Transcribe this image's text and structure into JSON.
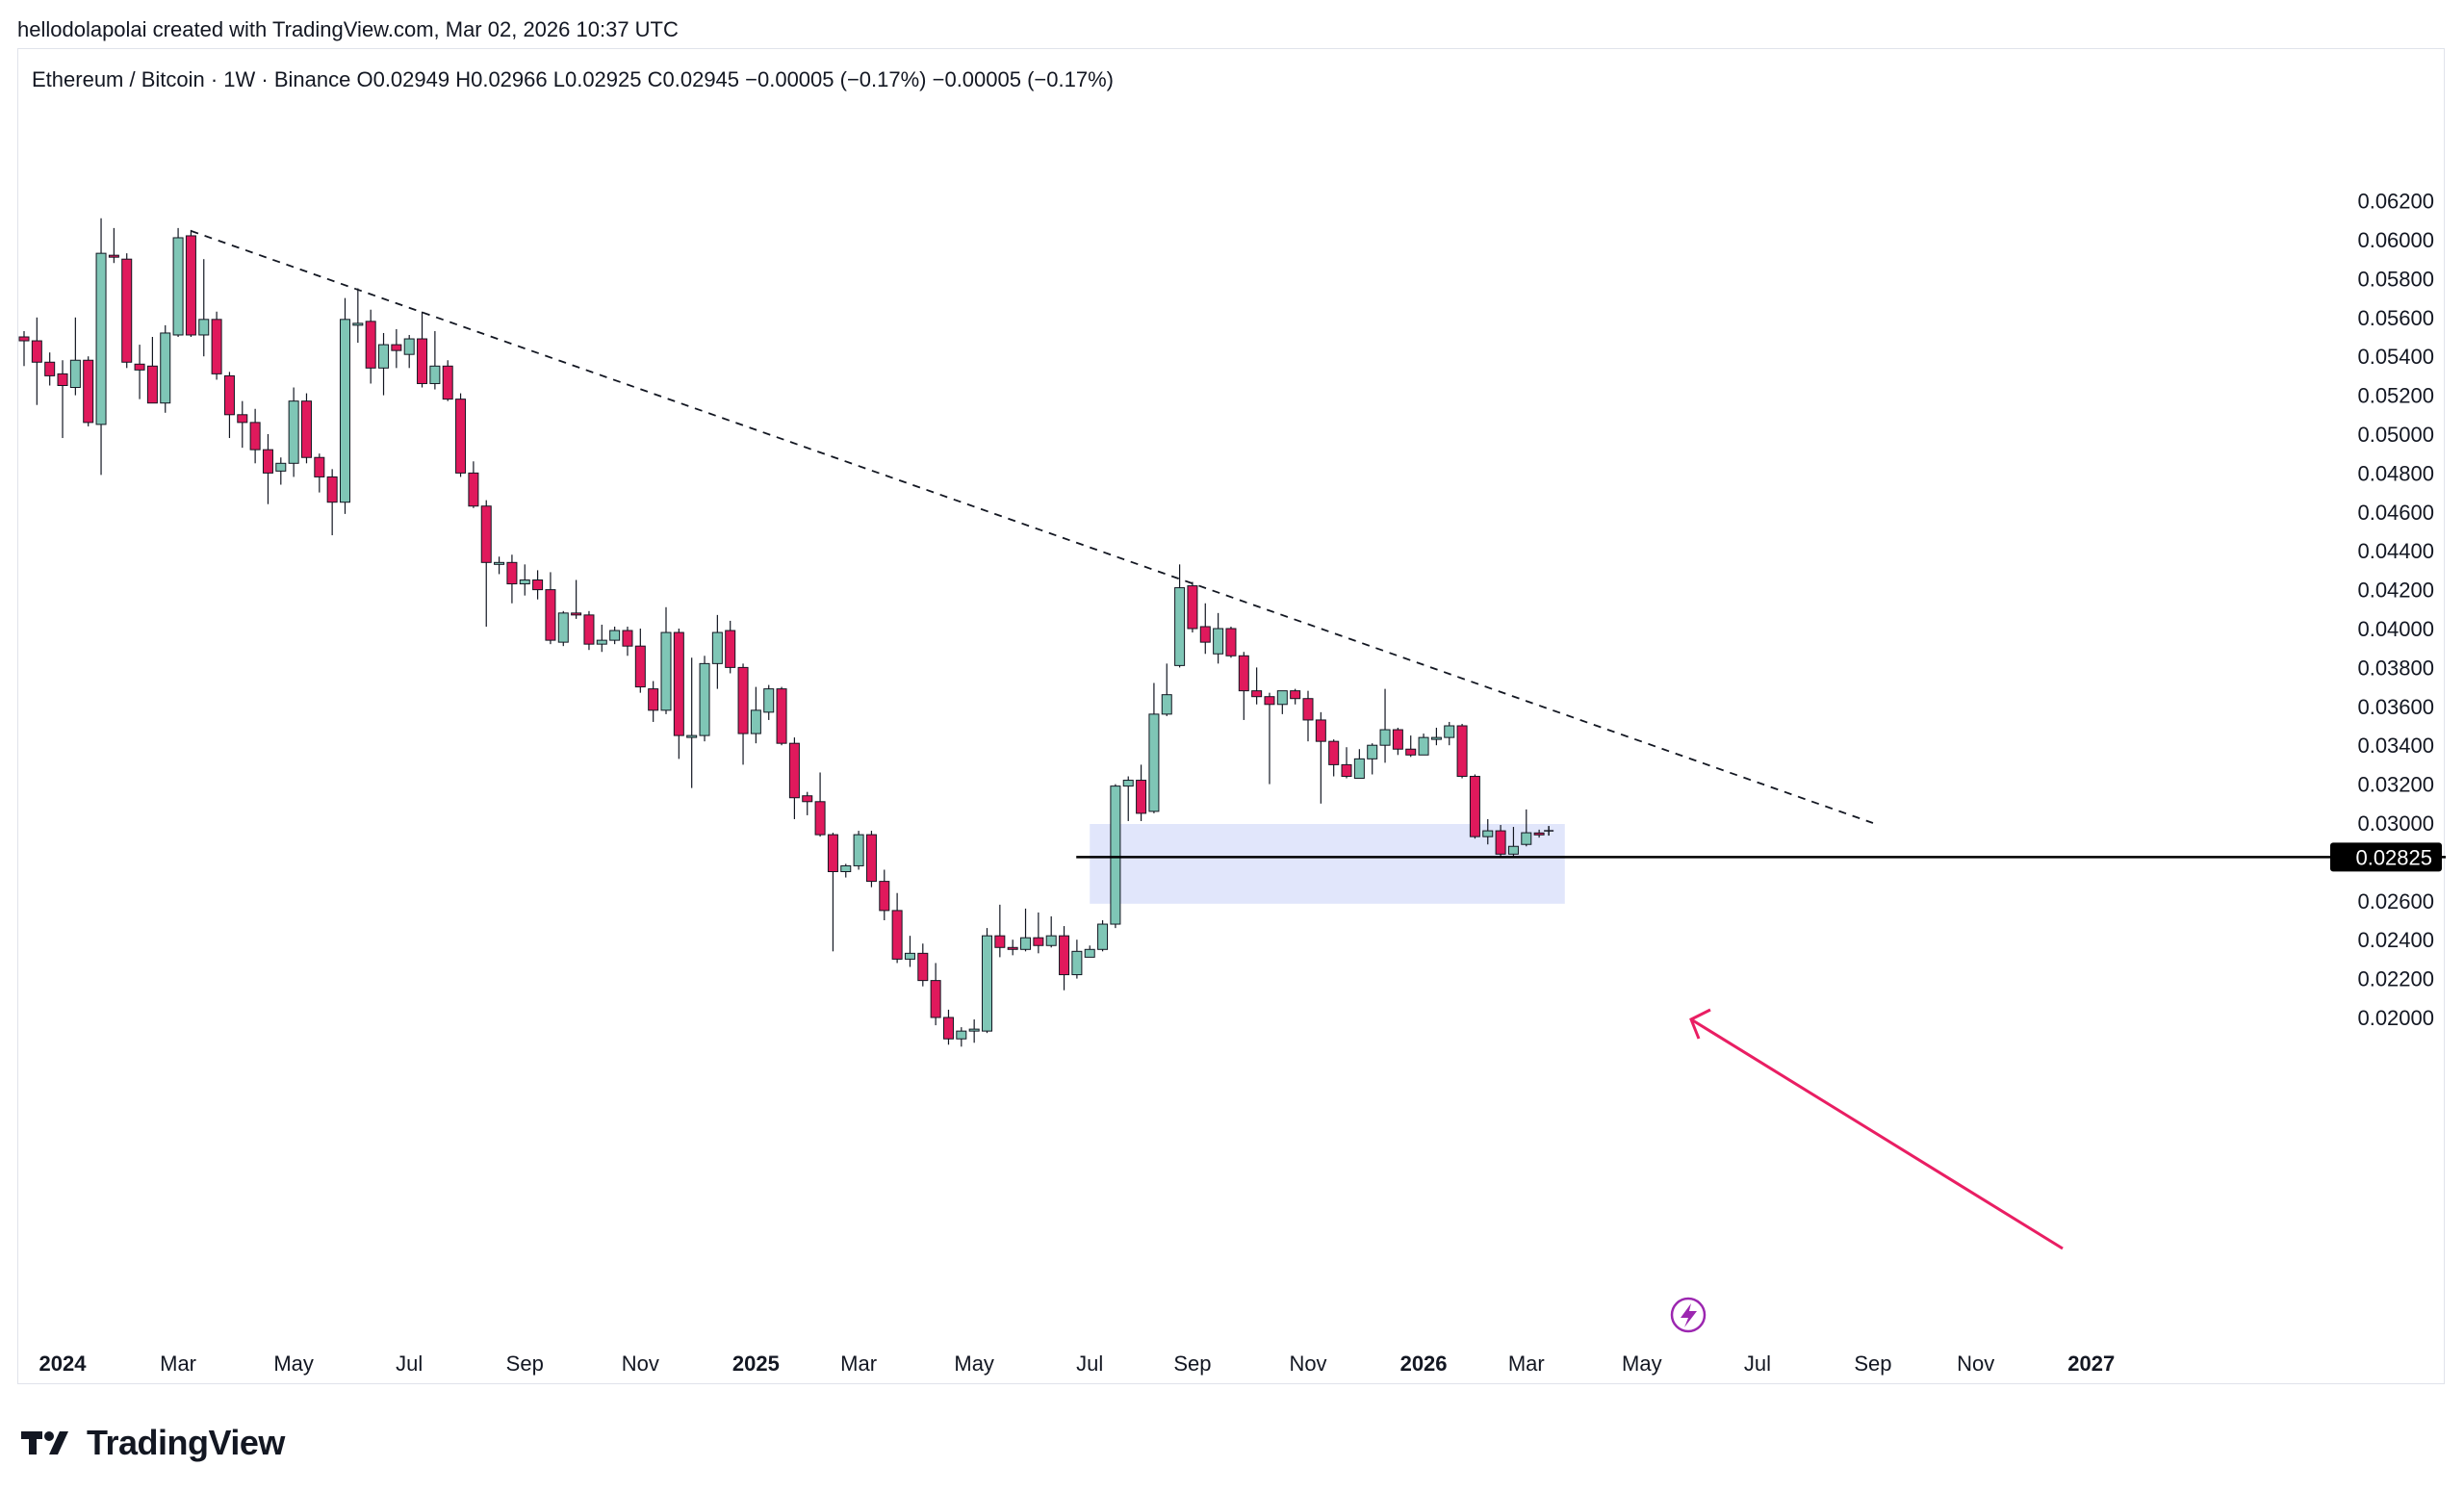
{
  "header": {
    "credit": "hellodolapolai created with TradingView.com, Mar 02, 2026 10:37 UTC"
  },
  "symbol_bar": {
    "text": "Ethereum / Bitcoin · 1W · Binance  O0.02949  H0.02966  L0.02925  C0.02945  −0.00005 (−0.17%)  −0.00005 (−0.17%)"
  },
  "footer": {
    "brand": "TradingView"
  },
  "colors": {
    "up": "#7fc6b6",
    "down": "#e0195c",
    "zone": "#dfe5fb",
    "arrow": "#e91e63",
    "support": "#000000",
    "bolt": "#9c27b0"
  },
  "icons": [
    "lightning-bolt-icon",
    "crosshair-icon",
    "tradingview-logo-icon"
  ],
  "chart_data": {
    "type": "candlestick",
    "title": "Ethereum / Bitcoin · 1W · Binance",
    "ylim": [
      0.0185,
      0.0635
    ],
    "y_ticks": [
      "0.06200",
      "0.06000",
      "0.05800",
      "0.05600",
      "0.05400",
      "0.05200",
      "0.05000",
      "0.04800",
      "0.04600",
      "0.04400",
      "0.04200",
      "0.04000",
      "0.03800",
      "0.03600",
      "0.03400",
      "0.03200",
      "0.03000",
      "0.02600",
      "0.02400",
      "0.02200",
      "0.02000"
    ],
    "x_ticks": [
      {
        "label": "2024",
        "bold": true,
        "index": 3
      },
      {
        "label": "Mar",
        "bold": false,
        "index": 12
      },
      {
        "label": "May",
        "bold": false,
        "index": 21
      },
      {
        "label": "Jul",
        "bold": false,
        "index": 30
      },
      {
        "label": "Sep",
        "bold": false,
        "index": 39
      },
      {
        "label": "Nov",
        "bold": false,
        "index": 48
      },
      {
        "label": "2025",
        "bold": true,
        "index": 57
      },
      {
        "label": "Mar",
        "bold": false,
        "index": 65
      },
      {
        "label": "May",
        "bold": false,
        "index": 74
      },
      {
        "label": "Jul",
        "bold": false,
        "index": 83
      },
      {
        "label": "Sep",
        "bold": false,
        "index": 91
      },
      {
        "label": "Nov",
        "bold": false,
        "index": 100
      },
      {
        "label": "2026",
        "bold": true,
        "index": 109
      },
      {
        "label": "Mar",
        "bold": false,
        "index": 117
      },
      {
        "label": "May",
        "bold": false,
        "index": 126
      },
      {
        "label": "Jul",
        "bold": false,
        "index": 135
      },
      {
        "label": "Sep",
        "bold": false,
        "index": 144
      },
      {
        "label": "Nov",
        "bold": false,
        "index": 152
      },
      {
        "label": "2027",
        "bold": true,
        "index": 161
      }
    ],
    "price_label": "0.02825",
    "support_level": 0.02825,
    "zone": {
      "start_index": 83,
      "end_index": 120,
      "top": 0.02995,
      "bottom": 0.02585
    },
    "trendline": [
      {
        "index": 13,
        "price": 0.06045
      },
      {
        "index": 144,
        "price": 0.03
      }
    ],
    "candles": [
      {
        "o": 0.055,
        "h": 0.0553,
        "l": 0.0535,
        "c": 0.0548
      },
      {
        "o": 0.0548,
        "h": 0.056,
        "l": 0.0515,
        "c": 0.0537
      },
      {
        "o": 0.0537,
        "h": 0.0542,
        "l": 0.0525,
        "c": 0.053
      },
      {
        "o": 0.0531,
        "h": 0.0538,
        "l": 0.0498,
        "c": 0.0525
      },
      {
        "o": 0.0524,
        "h": 0.056,
        "l": 0.052,
        "c": 0.0538
      },
      {
        "o": 0.0538,
        "h": 0.054,
        "l": 0.0504,
        "c": 0.0506
      },
      {
        "o": 0.0505,
        "h": 0.0611,
        "l": 0.0479,
        "c": 0.0593
      },
      {
        "o": 0.0592,
        "h": 0.0606,
        "l": 0.0588,
        "c": 0.0591
      },
      {
        "o": 0.059,
        "h": 0.0593,
        "l": 0.0534,
        "c": 0.0537
      },
      {
        "o": 0.0536,
        "h": 0.0546,
        "l": 0.0518,
        "c": 0.0533
      },
      {
        "o": 0.0535,
        "h": 0.055,
        "l": 0.0516,
        "c": 0.0516
      },
      {
        "o": 0.0516,
        "h": 0.0556,
        "l": 0.0511,
        "c": 0.0552
      },
      {
        "o": 0.0551,
        "h": 0.0606,
        "l": 0.055,
        "c": 0.0601
      },
      {
        "o": 0.0602,
        "h": 0.0605,
        "l": 0.055,
        "c": 0.0551
      },
      {
        "o": 0.0551,
        "h": 0.059,
        "l": 0.054,
        "c": 0.0559
      },
      {
        "o": 0.0559,
        "h": 0.0563,
        "l": 0.0528,
        "c": 0.0531
      },
      {
        "o": 0.053,
        "h": 0.0532,
        "l": 0.0498,
        "c": 0.051
      },
      {
        "o": 0.051,
        "h": 0.0517,
        "l": 0.0493,
        "c": 0.0506
      },
      {
        "o": 0.0506,
        "h": 0.0513,
        "l": 0.0485,
        "c": 0.0492
      },
      {
        "o": 0.0492,
        "h": 0.05,
        "l": 0.0464,
        "c": 0.048
      },
      {
        "o": 0.0481,
        "h": 0.0488,
        "l": 0.0474,
        "c": 0.0485
      },
      {
        "o": 0.0485,
        "h": 0.0524,
        "l": 0.0478,
        "c": 0.0517
      },
      {
        "o": 0.0517,
        "h": 0.0521,
        "l": 0.0485,
        "c": 0.0488
      },
      {
        "o": 0.0488,
        "h": 0.049,
        "l": 0.047,
        "c": 0.0478
      },
      {
        "o": 0.0478,
        "h": 0.0482,
        "l": 0.0448,
        "c": 0.0465
      },
      {
        "o": 0.0465,
        "h": 0.057,
        "l": 0.0459,
        "c": 0.0559
      },
      {
        "o": 0.0557,
        "h": 0.0575,
        "l": 0.0547,
        "c": 0.0557
      },
      {
        "o": 0.0558,
        "h": 0.0564,
        "l": 0.0526,
        "c": 0.0534
      },
      {
        "o": 0.0534,
        "h": 0.0552,
        "l": 0.052,
        "c": 0.0546
      },
      {
        "o": 0.0546,
        "h": 0.0554,
        "l": 0.0534,
        "c": 0.0543
      },
      {
        "o": 0.0541,
        "h": 0.0551,
        "l": 0.0534,
        "c": 0.0549
      },
      {
        "o": 0.0549,
        "h": 0.0563,
        "l": 0.0524,
        "c": 0.0526
      },
      {
        "o": 0.0526,
        "h": 0.0553,
        "l": 0.0523,
        "c": 0.0535
      },
      {
        "o": 0.0535,
        "h": 0.0538,
        "l": 0.0517,
        "c": 0.0518
      },
      {
        "o": 0.0518,
        "h": 0.0521,
        "l": 0.0478,
        "c": 0.048
      },
      {
        "o": 0.048,
        "h": 0.0486,
        "l": 0.0462,
        "c": 0.0463
      },
      {
        "o": 0.0463,
        "h": 0.0466,
        "l": 0.0401,
        "c": 0.0434
      },
      {
        "o": 0.0434,
        "h": 0.0437,
        "l": 0.0428,
        "c": 0.0434
      },
      {
        "o": 0.0434,
        "h": 0.0438,
        "l": 0.0413,
        "c": 0.0423
      },
      {
        "o": 0.0423,
        "h": 0.0433,
        "l": 0.0417,
        "c": 0.0425
      },
      {
        "o": 0.0425,
        "h": 0.043,
        "l": 0.0415,
        "c": 0.042
      },
      {
        "o": 0.042,
        "h": 0.0429,
        "l": 0.0392,
        "c": 0.0394
      },
      {
        "o": 0.0393,
        "h": 0.0409,
        "l": 0.0391,
        "c": 0.0408
      },
      {
        "o": 0.0408,
        "h": 0.0425,
        "l": 0.0405,
        "c": 0.0407
      },
      {
        "o": 0.0407,
        "h": 0.0409,
        "l": 0.0389,
        "c": 0.0392
      },
      {
        "o": 0.0392,
        "h": 0.0402,
        "l": 0.0388,
        "c": 0.0394
      },
      {
        "o": 0.0394,
        "h": 0.0401,
        "l": 0.0392,
        "c": 0.0399
      },
      {
        "o": 0.0399,
        "h": 0.0401,
        "l": 0.0386,
        "c": 0.0391
      },
      {
        "o": 0.0391,
        "h": 0.04,
        "l": 0.0367,
        "c": 0.037
      },
      {
        "o": 0.0369,
        "h": 0.0373,
        "l": 0.0352,
        "c": 0.0358
      },
      {
        "o": 0.0358,
        "h": 0.0411,
        "l": 0.0356,
        "c": 0.0398
      },
      {
        "o": 0.0398,
        "h": 0.04,
        "l": 0.0333,
        "c": 0.0345
      },
      {
        "o": 0.0345,
        "h": 0.0385,
        "l": 0.0318,
        "c": 0.0345
      },
      {
        "o": 0.0345,
        "h": 0.0386,
        "l": 0.0342,
        "c": 0.0382
      },
      {
        "o": 0.0382,
        "h": 0.0407,
        "l": 0.0369,
        "c": 0.0398
      },
      {
        "o": 0.0399,
        "h": 0.0404,
        "l": 0.0377,
        "c": 0.038
      },
      {
        "o": 0.038,
        "h": 0.0382,
        "l": 0.033,
        "c": 0.0346
      },
      {
        "o": 0.0346,
        "h": 0.037,
        "l": 0.0341,
        "c": 0.0358
      },
      {
        "o": 0.0357,
        "h": 0.0371,
        "l": 0.0353,
        "c": 0.0369
      },
      {
        "o": 0.0369,
        "h": 0.037,
        "l": 0.034,
        "c": 0.0341
      },
      {
        "o": 0.0341,
        "h": 0.0344,
        "l": 0.0302,
        "c": 0.0313
      },
      {
        "o": 0.0314,
        "h": 0.0316,
        "l": 0.0304,
        "c": 0.0311
      },
      {
        "o": 0.0311,
        "h": 0.0326,
        "l": 0.0293,
        "c": 0.0294
      },
      {
        "o": 0.0294,
        "h": 0.0295,
        "l": 0.0234,
        "c": 0.0275
      },
      {
        "o": 0.0275,
        "h": 0.0279,
        "l": 0.0272,
        "c": 0.0278
      },
      {
        "o": 0.0278,
        "h": 0.0296,
        "l": 0.0276,
        "c": 0.0294
      },
      {
        "o": 0.0294,
        "h": 0.0296,
        "l": 0.0267,
        "c": 0.027
      },
      {
        "o": 0.027,
        "h": 0.0276,
        "l": 0.025,
        "c": 0.0255
      },
      {
        "o": 0.0255,
        "h": 0.0264,
        "l": 0.0228,
        "c": 0.023
      },
      {
        "o": 0.023,
        "h": 0.0242,
        "l": 0.0226,
        "c": 0.0233
      },
      {
        "o": 0.0233,
        "h": 0.0238,
        "l": 0.0216,
        "c": 0.0219
      },
      {
        "o": 0.0219,
        "h": 0.0228,
        "l": 0.0196,
        "c": 0.02
      },
      {
        "o": 0.02,
        "h": 0.0204,
        "l": 0.0186,
        "c": 0.0189
      },
      {
        "o": 0.0189,
        "h": 0.0195,
        "l": 0.0185,
        "c": 0.0193
      },
      {
        "o": 0.0193,
        "h": 0.0199,
        "l": 0.0187,
        "c": 0.0194
      },
      {
        "o": 0.0193,
        "h": 0.0246,
        "l": 0.0192,
        "c": 0.0242
      },
      {
        "o": 0.0242,
        "h": 0.0258,
        "l": 0.0231,
        "c": 0.0236
      },
      {
        "o": 0.0236,
        "h": 0.024,
        "l": 0.0232,
        "c": 0.0235
      },
      {
        "o": 0.0235,
        "h": 0.0256,
        "l": 0.0234,
        "c": 0.0241
      },
      {
        "o": 0.0241,
        "h": 0.0254,
        "l": 0.0233,
        "c": 0.0237
      },
      {
        "o": 0.0237,
        "h": 0.0252,
        "l": 0.0236,
        "c": 0.0242
      },
      {
        "o": 0.0242,
        "h": 0.0247,
        "l": 0.0214,
        "c": 0.0222
      },
      {
        "o": 0.0222,
        "h": 0.024,
        "l": 0.022,
        "c": 0.0234
      },
      {
        "o": 0.0231,
        "h": 0.0237,
        "l": 0.0232,
        "c": 0.0235
      },
      {
        "o": 0.0235,
        "h": 0.025,
        "l": 0.0234,
        "c": 0.0248
      },
      {
        "o": 0.0248,
        "h": 0.032,
        "l": 0.0246,
        "c": 0.0319
      },
      {
        "o": 0.0319,
        "h": 0.0324,
        "l": 0.0301,
        "c": 0.0322
      },
      {
        "o": 0.0322,
        "h": 0.033,
        "l": 0.0301,
        "c": 0.0305
      },
      {
        "o": 0.0306,
        "h": 0.0372,
        "l": 0.0305,
        "c": 0.0356
      },
      {
        "o": 0.0356,
        "h": 0.0382,
        "l": 0.0355,
        "c": 0.0366
      },
      {
        "o": 0.0381,
        "h": 0.0433,
        "l": 0.038,
        "c": 0.0421
      },
      {
        "o": 0.0422,
        "h": 0.0424,
        "l": 0.0398,
        "c": 0.04
      },
      {
        "o": 0.0401,
        "h": 0.0413,
        "l": 0.0387,
        "c": 0.0393
      },
      {
        "o": 0.0387,
        "h": 0.0408,
        "l": 0.0382,
        "c": 0.04
      },
      {
        "o": 0.04,
        "h": 0.0401,
        "l": 0.0385,
        "c": 0.0386
      },
      {
        "o": 0.0386,
        "h": 0.0388,
        "l": 0.0353,
        "c": 0.0368
      },
      {
        "o": 0.0368,
        "h": 0.038,
        "l": 0.0361,
        "c": 0.0365
      },
      {
        "o": 0.0365,
        "h": 0.0367,
        "l": 0.032,
        "c": 0.0361
      },
      {
        "o": 0.0361,
        "h": 0.0368,
        "l": 0.0356,
        "c": 0.0368
      },
      {
        "o": 0.0368,
        "h": 0.0369,
        "l": 0.0361,
        "c": 0.0364
      },
      {
        "o": 0.0364,
        "h": 0.0368,
        "l": 0.0342,
        "c": 0.0353
      },
      {
        "o": 0.0353,
        "h": 0.0357,
        "l": 0.031,
        "c": 0.0342
      },
      {
        "o": 0.0342,
        "h": 0.0343,
        "l": 0.0324,
        "c": 0.033
      },
      {
        "o": 0.033,
        "h": 0.0339,
        "l": 0.0323,
        "c": 0.0324
      },
      {
        "o": 0.0323,
        "h": 0.0338,
        "l": 0.0324,
        "c": 0.0333
      },
      {
        "o": 0.0333,
        "h": 0.0341,
        "l": 0.0325,
        "c": 0.034
      },
      {
        "o": 0.034,
        "h": 0.0369,
        "l": 0.0331,
        "c": 0.0348
      },
      {
        "o": 0.0348,
        "h": 0.0349,
        "l": 0.0335,
        "c": 0.0338
      },
      {
        "o": 0.0338,
        "h": 0.0345,
        "l": 0.0334,
        "c": 0.0335
      },
      {
        "o": 0.0335,
        "h": 0.0346,
        "l": 0.0336,
        "c": 0.0344
      },
      {
        "o": 0.0344,
        "h": 0.0349,
        "l": 0.034,
        "c": 0.0344
      },
      {
        "o": 0.0344,
        "h": 0.0352,
        "l": 0.034,
        "c": 0.035
      },
      {
        "o": 0.035,
        "h": 0.0351,
        "l": 0.0323,
        "c": 0.0324
      },
      {
        "o": 0.0324,
        "h": 0.0325,
        "l": 0.0292,
        "c": 0.0293
      },
      {
        "o": 0.0293,
        "h": 0.0302,
        "l": 0.0289,
        "c": 0.0296
      },
      {
        "o": 0.0296,
        "h": 0.0299,
        "l": 0.0282,
        "c": 0.0284
      },
      {
        "o": 0.0284,
        "h": 0.0298,
        "l": 0.0283,
        "c": 0.0288
      },
      {
        "o": 0.0289,
        "h": 0.0307,
        "l": 0.0288,
        "c": 0.0295
      },
      {
        "o": 0.02949,
        "h": 0.02966,
        "l": 0.02925,
        "c": 0.02945
      }
    ]
  }
}
